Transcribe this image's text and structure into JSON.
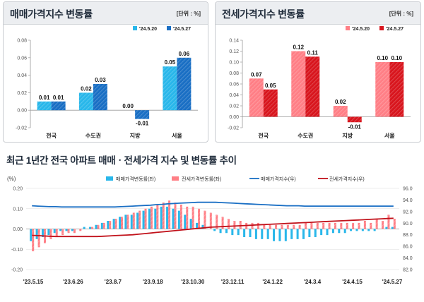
{
  "panels": {
    "sale": {
      "title": "매매가격지수 변동률",
      "unit": "[단위 : %]"
    },
    "jeonse": {
      "title": "전세가격지수 변동률",
      "unit": "[단위 : %]"
    }
  },
  "bottom": {
    "title": "최근 1년간 전국 아파트 매매ㆍ전세가격 지수 및 변동률 추이",
    "unit_left": "(%)"
  },
  "colors": {
    "sale_prev": "#29b7ea",
    "sale_curr": "#1a6fc4",
    "jeonse_prev": "#ff7f86",
    "jeonse_curr": "#d8161e",
    "sale_index_line": "#1a6fc4",
    "jeonse_index_line": "#c1121b"
  },
  "chart_data": [
    {
      "type": "bar",
      "categories": [
        "전국",
        "수도권",
        "지방",
        "서울"
      ],
      "series": [
        {
          "name": "'24.5.20",
          "values": [
            0.01,
            0.02,
            0.0,
            0.05
          ]
        },
        {
          "name": "'24.5.27",
          "values": [
            0.01,
            0.03,
            -0.01,
            0.06
          ]
        }
      ],
      "data_labels": [
        [
          "0.01",
          "0.02",
          "0.00",
          "0.05"
        ],
        [
          "0.01",
          "0.03",
          "-0.01",
          "0.06"
        ]
      ],
      "ylim": [
        -0.02,
        0.08
      ],
      "yticks": [
        "0.08",
        "0.06",
        "0.04",
        "0.02",
        "0.00",
        "-0.02"
      ],
      "legend": "top-right"
    },
    {
      "type": "bar",
      "categories": [
        "전국",
        "수도권",
        "지방",
        "서울"
      ],
      "series": [
        {
          "name": "'24.5.20",
          "values": [
            0.07,
            0.12,
            0.02,
            0.1
          ]
        },
        {
          "name": "'24.5.27",
          "values": [
            0.05,
            0.11,
            -0.01,
            0.1
          ]
        }
      ],
      "data_labels": [
        [
          "0.07",
          "0.12",
          "0.02",
          "0.10"
        ],
        [
          "0.05",
          "0.11",
          "-0.01",
          "0.10"
        ]
      ],
      "ylim": [
        -0.02,
        0.14
      ],
      "yticks": [
        "0.14",
        "0.12",
        "0.10",
        "0.08",
        "0.06",
        "0.04",
        "0.02",
        "0.00",
        "-0.02"
      ],
      "legend": "top-right"
    },
    {
      "type": "bar",
      "x_ticks": [
        "'23.5.15",
        "'23.6.26",
        "'23.8.7",
        "'23.9.18",
        "'23.10.30",
        "'23.12.11",
        "'24.1.22",
        "'24.3.4",
        "'24.4.15",
        "'24.5.27"
      ],
      "ylim_left": [
        -0.2,
        0.2
      ],
      "yticks_left": [
        "0.20",
        "0.10",
        "0.00",
        "-0.10",
        "-0.20"
      ],
      "ylim_right": [
        82.0,
        96.0
      ],
      "yticks_right": [
        "96.0",
        "94.0",
        "92.0",
        "90.0",
        "88.0",
        "86.0",
        "84.0",
        "82.0"
      ],
      "legend": "top",
      "series": [
        {
          "name": "매매가격변동률(좌)",
          "axis": "left",
          "kind": "bar",
          "values": [
            -0.06,
            -0.05,
            -0.04,
            -0.03,
            -0.02,
            -0.01,
            -0.01,
            -0.01,
            0.0,
            0.01,
            0.01,
            0.02,
            0.03,
            0.04,
            0.05,
            0.06,
            0.07,
            0.07,
            0.08,
            0.09,
            0.1,
            0.1,
            0.11,
            0.11,
            0.1,
            0.09,
            0.07,
            0.05,
            0.03,
            0.02,
            0.0,
            -0.01,
            -0.02,
            -0.02,
            -0.03,
            -0.03,
            -0.04,
            -0.04,
            -0.05,
            -0.05,
            -0.05,
            -0.06,
            -0.06,
            -0.06,
            -0.05,
            -0.05,
            -0.05,
            -0.04,
            -0.04,
            -0.03,
            -0.03,
            -0.02,
            -0.02,
            -0.02,
            -0.01,
            -0.01,
            -0.01,
            -0.01,
            -0.01,
            0.0,
            0.01,
            0.01
          ]
        },
        {
          "name": "전세가격변동률(좌)",
          "axis": "left",
          "kind": "bar",
          "values": [
            -0.11,
            -0.09,
            -0.07,
            -0.05,
            -0.04,
            -0.03,
            -0.02,
            -0.02,
            -0.01,
            0.0,
            0.01,
            0.02,
            0.03,
            0.04,
            0.05,
            0.06,
            0.07,
            0.08,
            0.09,
            0.1,
            0.11,
            0.12,
            0.13,
            0.14,
            0.13,
            0.12,
            0.11,
            0.11,
            0.1,
            0.09,
            0.08,
            0.07,
            0.06,
            0.05,
            0.04,
            0.04,
            0.03,
            0.03,
            0.03,
            0.02,
            0.02,
            0.02,
            0.02,
            0.02,
            0.02,
            0.02,
            0.03,
            0.03,
            0.03,
            0.03,
            0.03,
            0.03,
            0.03,
            0.03,
            0.03,
            0.03,
            0.04,
            0.03,
            0.05,
            0.04,
            0.07,
            0.05
          ]
        },
        {
          "name": "매매가격지수(우)",
          "axis": "right",
          "kind": "line",
          "values": [
            93.0,
            92.95,
            92.9,
            92.85,
            92.85,
            92.8,
            92.8,
            92.8,
            92.8,
            92.8,
            92.8,
            92.8,
            92.8,
            92.8,
            92.8,
            92.85,
            92.9,
            92.95,
            93.0,
            93.05,
            93.1,
            93.2,
            93.25,
            93.35,
            93.4,
            93.45,
            93.5,
            93.55,
            93.6,
            93.6,
            93.6,
            93.6,
            93.55,
            93.5,
            93.45,
            93.4,
            93.35,
            93.3,
            93.25,
            93.2,
            93.15,
            93.1,
            93.05,
            93.0,
            93.0,
            93.0,
            92.95,
            92.95,
            92.95,
            92.95,
            92.95,
            92.95,
            92.95,
            92.95,
            92.95,
            92.95,
            92.95,
            92.95,
            92.95,
            92.95,
            92.95,
            92.95
          ]
        },
        {
          "name": "전세가격지수(우)",
          "axis": "right",
          "kind": "line",
          "values": [
            87.9,
            87.85,
            87.8,
            87.75,
            87.7,
            87.7,
            87.7,
            87.7,
            87.7,
            87.7,
            87.7,
            87.7,
            87.75,
            87.8,
            87.85,
            87.9,
            87.95,
            88.0,
            88.1,
            88.2,
            88.3,
            88.4,
            88.5,
            88.6,
            88.7,
            88.8,
            88.9,
            89.0,
            89.1,
            89.2,
            89.3,
            89.35,
            89.4,
            89.45,
            89.5,
            89.55,
            89.6,
            89.65,
            89.7,
            89.75,
            89.8,
            89.85,
            89.9,
            89.95,
            90.0,
            90.05,
            90.1,
            90.15,
            90.2,
            90.25,
            90.3,
            90.35,
            90.4,
            90.45,
            90.5,
            90.55,
            90.6,
            90.65,
            90.7,
            90.75,
            90.8,
            90.85
          ]
        }
      ]
    }
  ]
}
